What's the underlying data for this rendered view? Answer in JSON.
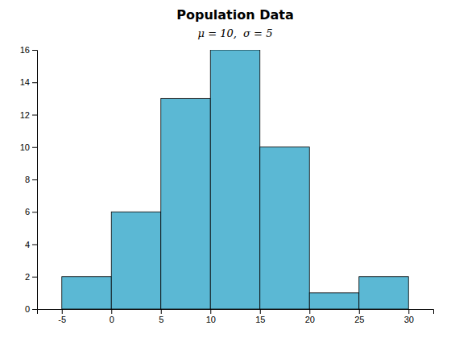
{
  "chart_data": {
    "type": "histogram",
    "title": "Population Data",
    "subtitle": "μ = 10,  σ = 5",
    "bins": [
      -5,
      0,
      5,
      10,
      15,
      20,
      25,
      30
    ],
    "values": [
      2,
      6,
      13,
      16,
      10,
      1,
      2
    ],
    "color": "#5BB8D4",
    "xlim": [
      -7.5,
      32.5
    ],
    "ylim": [
      0,
      16
    ],
    "xticks": [
      -5,
      0,
      5,
      10,
      15,
      20,
      25,
      30
    ],
    "yticks": [
      0,
      2,
      4,
      6,
      8,
      10,
      12,
      14,
      16
    ]
  }
}
